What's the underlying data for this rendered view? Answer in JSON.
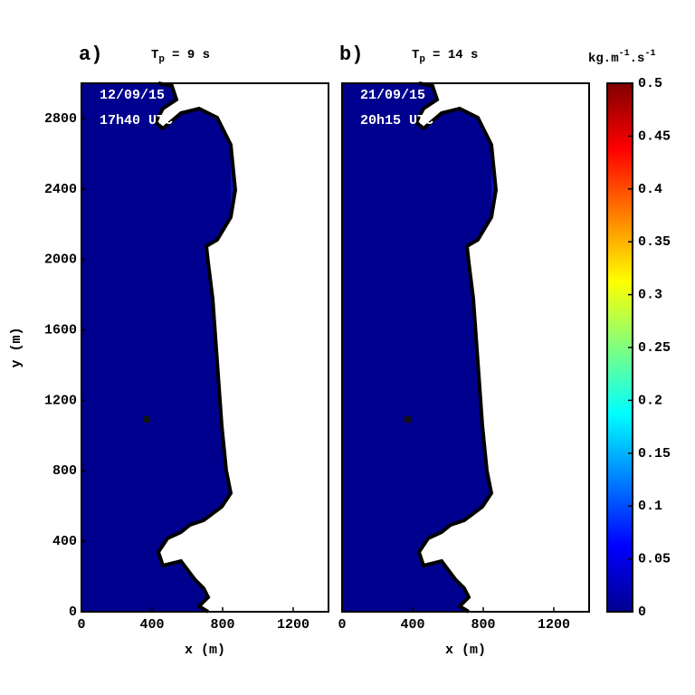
{
  "chart_data": [
    {
      "type": "heatmap",
      "panel_label": "a)",
      "period_label": {
        "symbol": "T",
        "subscript": "p",
        "text": "= 9 s"
      },
      "date": "12/09/15",
      "time": "17h40 UTC",
      "xlabel": "x (m)",
      "ylabel": "y (m)",
      "xlim": [
        0,
        1400
      ],
      "xticks": [
        0,
        400,
        800,
        1200
      ],
      "ylim": [
        0,
        3000
      ],
      "yticks": [
        0,
        400,
        800,
        1200,
        1600,
        2000,
        2400,
        2800
      ]
    },
    {
      "type": "heatmap",
      "panel_label": "b)",
      "period_label": {
        "symbol": "T",
        "subscript": "p",
        "text": "= 14 s"
      },
      "date": "21/09/15",
      "time": "20h15 UTC",
      "xlabel": "x (m)",
      "xlim": [
        0,
        1400
      ],
      "xticks": [
        0,
        400,
        800,
        1200
      ],
      "ylim": [
        0,
        3000
      ]
    }
  ],
  "colorbar": {
    "clim": [
      0,
      0.5
    ],
    "ticks": [
      0,
      0.05,
      0.1,
      0.15,
      0.2,
      0.25,
      0.3,
      0.35,
      0.4,
      0.45,
      0.5
    ],
    "label": {
      "base": "kg.m",
      "exp1": "-1",
      "mid": ".s",
      "exp2": "-1"
    }
  }
}
